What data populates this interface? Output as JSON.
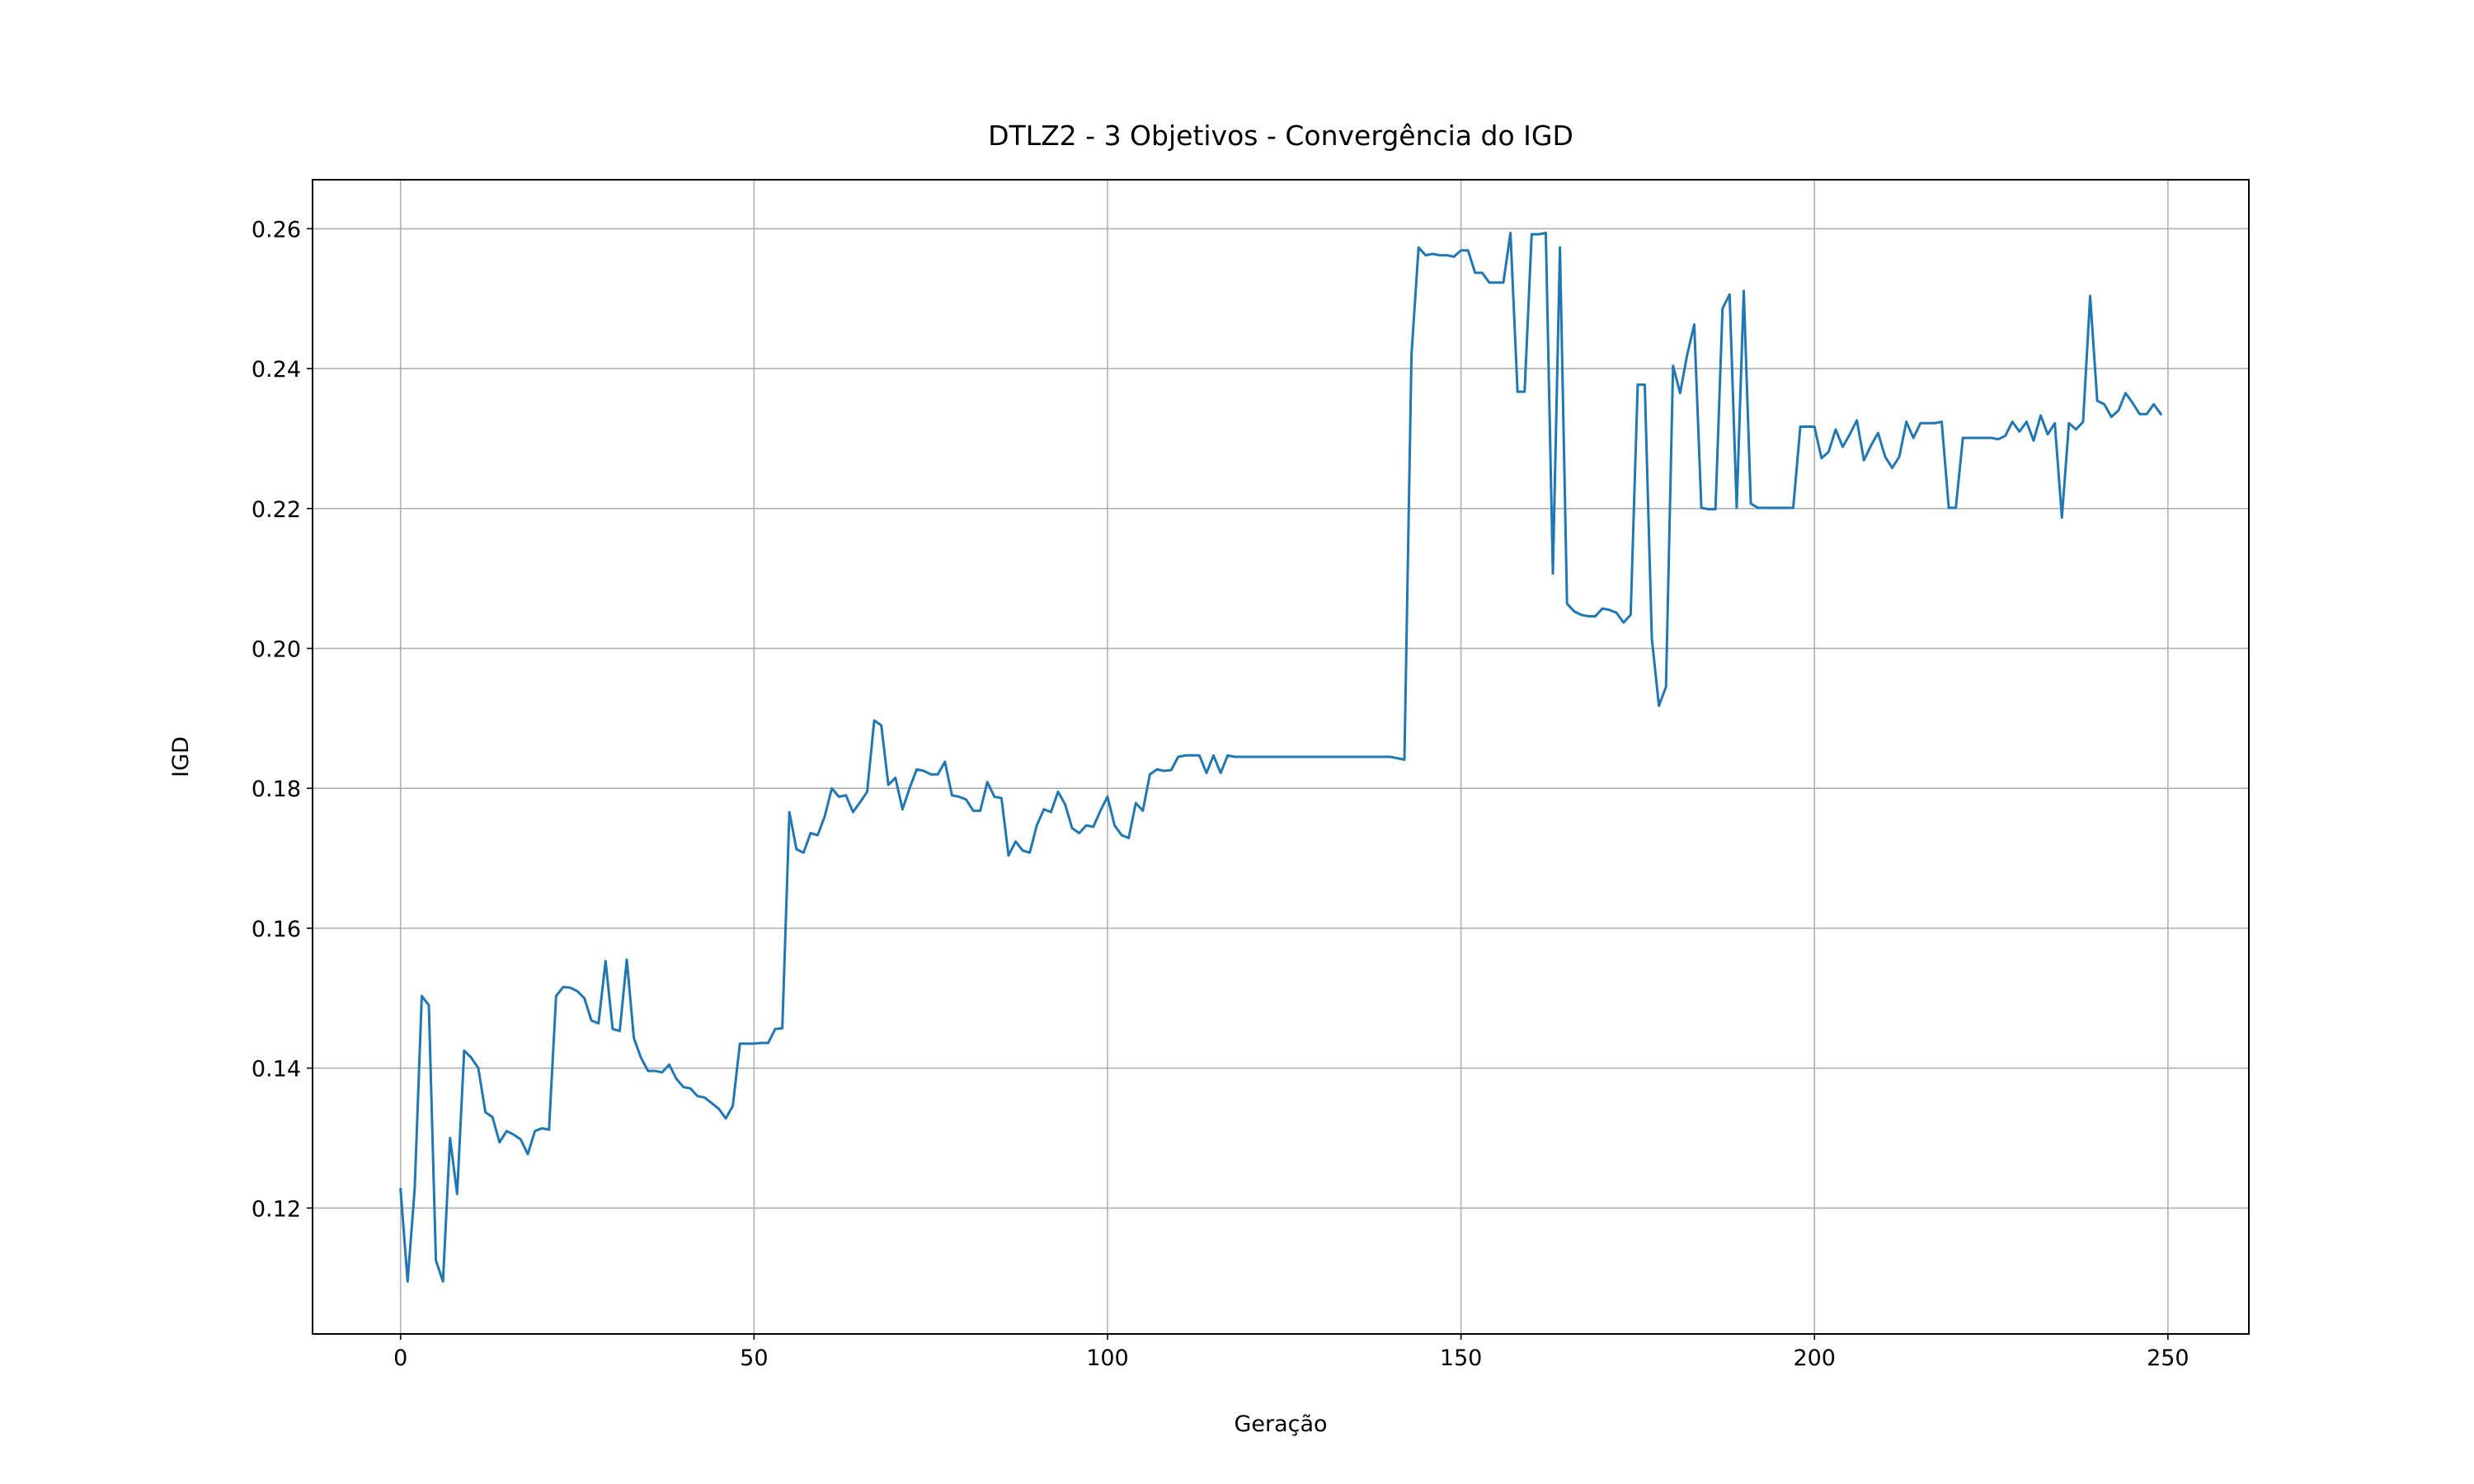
{
  "chart_data": {
    "type": "line",
    "title": "DTLZ2 - 3 Objetivos - Convergência do IGD",
    "x_label": "Geração",
    "y_label": "IGD",
    "grid": true,
    "xlim": [
      -12.45,
      261.45
    ],
    "ylim": [
      0.102,
      0.267
    ],
    "xticks": [
      0,
      50,
      100,
      150,
      200,
      250
    ],
    "yticks": [
      0.12,
      0.14,
      0.16,
      0.18,
      {
        "value": 0.2,
        "label": "0.20"
      },
      0.22,
      0.24,
      0.26
    ],
    "x": [
      0,
      1,
      2,
      3,
      4,
      5,
      6,
      7,
      8,
      9,
      10,
      11,
      12,
      13,
      14,
      15,
      16,
      17,
      18,
      19,
      20,
      21,
      22,
      23,
      24,
      25,
      26,
      27,
      28,
      29,
      30,
      31,
      32,
      33,
      34,
      35,
      36,
      37,
      38,
      39,
      40,
      41,
      42,
      43,
      44,
      45,
      46,
      47,
      48,
      49,
      50,
      51,
      52,
      53,
      54,
      55,
      56,
      57,
      58,
      59,
      60,
      61,
      62,
      63,
      64,
      65,
      66,
      67,
      68,
      69,
      70,
      71,
      72,
      73,
      74,
      75,
      76,
      77,
      78,
      79,
      80,
      81,
      82,
      83,
      84,
      85,
      86,
      87,
      88,
      89,
      90,
      91,
      92,
      93,
      94,
      95,
      96,
      97,
      98,
      99,
      100,
      101,
      102,
      103,
      104,
      105,
      106,
      107,
      108,
      109,
      110,
      111,
      112,
      113,
      114,
      115,
      116,
      117,
      118,
      119,
      120,
      121,
      122,
      123,
      124,
      125,
      126,
      127,
      128,
      129,
      130,
      131,
      132,
      133,
      134,
      135,
      136,
      137,
      138,
      139,
      140,
      141,
      142,
      143,
      144,
      145,
      146,
      147,
      148,
      149,
      150,
      151,
      152,
      153,
      154,
      155,
      156,
      157,
      158,
      159,
      160,
      161,
      162,
      163,
      164,
      165,
      166,
      167,
      168,
      169,
      170,
      171,
      172,
      173,
      174,
      175,
      176,
      177,
      178,
      179,
      180,
      181,
      182,
      183,
      184,
      185,
      186,
      187,
      188,
      189,
      190,
      191,
      192,
      193,
      194,
      195,
      196,
      197,
      198,
      199,
      200,
      201,
      202,
      203,
      204,
      205,
      206,
      207,
      208,
      209,
      210,
      211,
      212,
      213,
      214,
      215,
      216,
      217,
      218,
      219,
      220,
      221,
      222,
      223,
      224,
      225,
      226,
      227,
      228,
      229,
      230,
      231,
      232,
      233,
      234,
      235,
      236,
      237,
      238,
      239,
      240,
      241,
      242,
      243,
      244,
      245,
      246,
      247,
      248,
      249
    ],
    "series": [
      {
        "color": "#1f77b4",
        "values": [
          0.1227,
          0.1095,
          0.1228,
          0.1503,
          0.149,
          0.1125,
          0.1095,
          0.13,
          0.122,
          0.1425,
          0.1415,
          0.14,
          0.1337,
          0.133,
          0.1294,
          0.131,
          0.1305,
          0.1298,
          0.1277,
          0.131,
          0.1314,
          0.1312,
          0.1503,
          0.1516,
          0.1515,
          0.151,
          0.15,
          0.1468,
          0.1464,
          0.1553,
          0.1456,
          0.1453,
          0.1555,
          0.1443,
          0.1415,
          0.1396,
          0.1396,
          0.1394,
          0.1405,
          0.1385,
          0.1373,
          0.1371,
          0.136,
          0.1358,
          0.135,
          0.1342,
          0.1328,
          0.1346,
          0.1435,
          0.1435,
          0.1435,
          0.1436,
          0.1436,
          0.1456,
          0.1457,
          0.1766,
          0.1713,
          0.1708,
          0.1736,
          0.1733,
          0.176,
          0.18,
          0.1788,
          0.179,
          0.1766,
          0.178,
          0.1795,
          0.1897,
          0.189,
          0.1805,
          0.1815,
          0.177,
          0.18,
          0.1827,
          0.1825,
          0.182,
          0.182,
          0.1838,
          0.179,
          0.1788,
          0.1784,
          0.1768,
          0.1768,
          0.1809,
          0.1788,
          0.1786,
          0.1704,
          0.1724,
          0.1711,
          0.1708,
          0.1747,
          0.177,
          0.1766,
          0.1795,
          0.1777,
          0.1743,
          0.1736,
          0.1747,
          0.1745,
          0.1768,
          0.1788,
          0.1747,
          0.1733,
          0.1729,
          0.1779,
          0.1768,
          0.182,
          0.1827,
          0.1825,
          0.1826,
          0.1845,
          0.1847,
          0.1847,
          0.1847,
          0.1822,
          0.1847,
          0.1822,
          0.1847,
          0.1845,
          0.1845,
          0.1845,
          0.1845,
          0.1845,
          0.1845,
          0.1845,
          0.1845,
          0.1845,
          0.1845,
          0.1845,
          0.1845,
          0.1845,
          0.1845,
          0.1845,
          0.1845,
          0.1845,
          0.1845,
          0.1845,
          0.1845,
          0.1845,
          0.1845,
          0.1845,
          0.1843,
          0.1841,
          0.242,
          0.2573,
          0.2562,
          0.2564,
          0.2562,
          0.2562,
          0.256,
          0.2569,
          0.2569,
          0.2537,
          0.2537,
          0.2523,
          0.2523,
          0.2523,
          0.2594,
          0.2367,
          0.2367,
          0.2592,
          0.2592,
          0.2594,
          0.2107,
          0.2573,
          0.2064,
          0.2053,
          0.2048,
          0.2046,
          0.2046,
          0.2057,
          0.2055,
          0.2051,
          0.2037,
          0.2048,
          0.2377,
          0.2377,
          0.2014,
          0.1918,
          0.1945,
          0.2404,
          0.2365,
          0.242,
          0.2463,
          0.2201,
          0.2199,
          0.2199,
          0.2486,
          0.2506,
          0.2201,
          0.2511,
          0.2207,
          0.2201,
          0.2201,
          0.2201,
          0.2201,
          0.2201,
          0.2201,
          0.2317,
          0.2317,
          0.2317,
          0.2272,
          0.2281,
          0.2313,
          0.2288,
          0.2306,
          0.2326,
          0.2269,
          0.229,
          0.2308,
          0.2274,
          0.2258,
          0.2274,
          0.2324,
          0.2301,
          0.2322,
          0.2322,
          0.2322,
          0.2324,
          0.2201,
          0.2201,
          0.2301,
          0.2301,
          0.2301,
          0.2301,
          0.2301,
          0.2299,
          0.2304,
          0.2324,
          0.231,
          0.2324,
          0.2297,
          0.2333,
          0.2306,
          0.2322,
          0.2187,
          0.2322,
          0.2313,
          0.2324,
          0.2504,
          0.2354,
          0.2349,
          0.2331,
          0.234,
          0.2365,
          0.2351,
          0.2335,
          0.2335,
          0.2349,
          0.2335
        ]
      }
    ]
  }
}
